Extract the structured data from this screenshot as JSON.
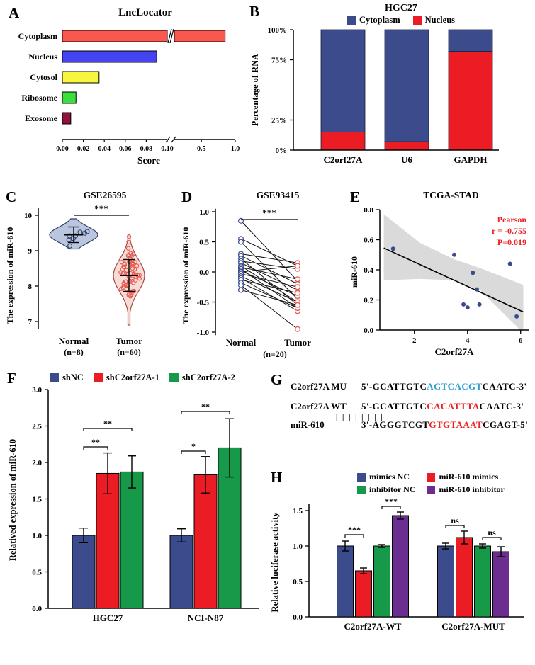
{
  "chart_data": [
    {
      "panel": "A",
      "type": "bar",
      "orientation": "horizontal",
      "title": "LncLocator",
      "xlabel": "Score",
      "categories": [
        "Cytoplasm",
        "Nucleus",
        "Cytosol",
        "Ribosome",
        "Exosome"
      ],
      "values": [
        0.85,
        0.09,
        0.035,
        0.013,
        0.008
      ],
      "bar_colors": [
        "#fa574f",
        "#4444f0",
        "#f6f63e",
        "#3bdf3b",
        "#8f123e"
      ],
      "axis_break": {
        "left_max": 0.1,
        "right_max": 1.0
      },
      "ticks_left": [
        {
          "v": 0,
          "label": "0.00"
        },
        {
          "v": 0.02,
          "label": "0.02"
        },
        {
          "v": 0.04,
          "label": "0.04"
        },
        {
          "v": 0.06,
          "label": "0.06"
        },
        {
          "v": 0.08,
          "label": "0.08"
        },
        {
          "v": 0.1,
          "label": "0.10"
        }
      ],
      "ticks_right": [
        {
          "v": 0.5,
          "label": "0.5"
        },
        {
          "v": 1.0,
          "label": "1.0"
        }
      ]
    },
    {
      "panel": "B",
      "type": "stacked-bar",
      "title": "HGC27",
      "ylabel": "Percentage of RNA",
      "categories": [
        "C2orf27A",
        "U6",
        "GAPDH"
      ],
      "series": [
        {
          "name": "Nucleus",
          "color": "#ec1c24",
          "values": [
            15,
            7,
            82
          ]
        },
        {
          "name": "Cytoplasm",
          "color": "#3c4b8c",
          "values": [
            85,
            93,
            18
          ]
        }
      ],
      "yticks": [
        {
          "v": 0,
          "label": "0%"
        },
        {
          "v": 25,
          "label": "25%"
        },
        {
          "v": 75,
          "label": "75%"
        },
        {
          "v": 100,
          "label": "100%"
        }
      ],
      "ylim": [
        0,
        100
      ]
    },
    {
      "panel": "C",
      "type": "violin",
      "title": "GSE26595",
      "ylabel": "The expression of miR-610",
      "significance": "***",
      "yticks": [
        7,
        8,
        9,
        10
      ],
      "ylim": [
        6.8,
        10.2
      ],
      "groups": [
        {
          "label": "Normal",
          "sublabel": "(n=8)",
          "n": 8,
          "mean": 9.45,
          "sd": 0.22,
          "min": 9.05,
          "max": 9.9,
          "maxw": 34,
          "fill": "#b9c6de",
          "stroke": "#333f6b",
          "point_color": "#333f6b"
        },
        {
          "label": "Tumor",
          "sublabel": "(n=60)",
          "n": 60,
          "mean": 8.3,
          "sd": 0.45,
          "min": 6.9,
          "max": 9.45,
          "maxw": 22,
          "fill": "#f8dbd5",
          "stroke": "#a14a44",
          "point_color": "#e4564f"
        }
      ]
    },
    {
      "panel": "D",
      "type": "paired-line",
      "title": "GSE93415",
      "ylabel": "The expression of miR-610",
      "significance": "***",
      "conditions": [
        "Normal",
        "Tumor"
      ],
      "sublabel": "(n=20)",
      "point_colors": {
        "normal": "#3a4a8c",
        "tumor": "#e4564f"
      },
      "yticks": [
        {
          "v": -1.0,
          "label": "-1.0"
        },
        {
          "v": -0.5,
          "label": "-0.5"
        },
        {
          "v": 0.0,
          "label": "0.0"
        },
        {
          "v": 0.5,
          "label": "0.5"
        },
        {
          "v": 1.0,
          "label": "1.0"
        }
      ],
      "ylim": [
        -1.05,
        1.05
      ],
      "pairs": [
        [
          0.85,
          -0.15
        ],
        [
          0.55,
          0.1
        ],
        [
          0.5,
          -0.45
        ],
        [
          0.3,
          0.15
        ],
        [
          0.27,
          -0.2
        ],
        [
          0.22,
          -0.55
        ],
        [
          0.18,
          0.05
        ],
        [
          0.15,
          -0.3
        ],
        [
          0.1,
          -0.5
        ],
        [
          0.08,
          -0.12
        ],
        [
          0.05,
          -0.6
        ],
        [
          0.02,
          -0.4
        ],
        [
          0.0,
          0.1
        ],
        [
          -0.03,
          -0.25
        ],
        [
          -0.07,
          -0.5
        ],
        [
          -0.1,
          -0.65
        ],
        [
          -0.13,
          -0.35
        ],
        [
          -0.18,
          -0.6
        ],
        [
          -0.22,
          -0.95
        ],
        [
          -0.3,
          -0.55
        ]
      ]
    },
    {
      "panel": "E",
      "type": "scatter",
      "title": "TCGA-STAD",
      "xlabel": "C2orf27A",
      "ylabel": "miR-610",
      "annotation": {
        "lines": [
          "Pearson",
          "r = -0.755",
          "P=0.019"
        ],
        "color": "#ed2024"
      },
      "point_color": "#3a4a8c",
      "points": [
        [
          1.2,
          0.54
        ],
        [
          3.5,
          0.5
        ],
        [
          3.85,
          0.17
        ],
        [
          4.0,
          0.15
        ],
        [
          4.2,
          0.38
        ],
        [
          4.35,
          0.27
        ],
        [
          4.45,
          0.17
        ],
        [
          5.6,
          0.44
        ],
        [
          5.85,
          0.09
        ]
      ],
      "regression": {
        "x1": 0.85,
        "y1": 0.545,
        "x2": 6.1,
        "y2": 0.12
      },
      "ci_upper": [
        [
          0.85,
          0.77
        ],
        [
          2.2,
          0.58
        ],
        [
          3.5,
          0.47
        ],
        [
          4.5,
          0.41
        ],
        [
          6.1,
          0.3
        ]
      ],
      "ci_lower": [
        [
          0.85,
          0.33
        ],
        [
          2.2,
          0.34
        ],
        [
          3.5,
          0.33
        ],
        [
          4.5,
          0.26
        ],
        [
          6.1,
          -0.02
        ]
      ],
      "xticks": [
        2,
        4,
        6
      ],
      "yticks": [
        {
          "v": 0.0,
          "label": "0.0"
        },
        {
          "v": 0.2,
          "label": "0.2"
        },
        {
          "v": 0.4,
          "label": "0.4"
        },
        {
          "v": 0.6,
          "label": "0.6"
        },
        {
          "v": 0.8,
          "label": "0.8"
        }
      ],
      "xlim": [
        0.7,
        6.3
      ],
      "ylim": [
        0,
        0.8
      ]
    },
    {
      "panel": "F",
      "type": "grouped-bar",
      "ylabel": "Relatived expression of miR-610",
      "groups": [
        "HGC27",
        "NCI-N87"
      ],
      "legend": [
        {
          "name": "shNC",
          "color": "#3c4b8c"
        },
        {
          "name": "shC2orf27A-1",
          "color": "#ec1c24"
        },
        {
          "name": "shC2orf27A-2",
          "color": "#169a4a"
        }
      ],
      "series_values": [
        [
          1.0,
          1.85,
          1.87
        ],
        [
          1.0,
          1.83,
          2.2
        ]
      ],
      "errors": [
        [
          0.1,
          0.28,
          0.22
        ],
        [
          0.09,
          0.25,
          0.4
        ]
      ],
      "yticks": [
        {
          "v": 0.0,
          "label": "0.0"
        },
        {
          "v": 0.5,
          "label": "0.5"
        },
        {
          "v": 1.0,
          "label": "1.0"
        },
        {
          "v": 1.5,
          "label": "1.5"
        },
        {
          "v": 2.0,
          "label": "2.0"
        },
        {
          "v": 2.5,
          "label": "2.5"
        },
        {
          "v": 3.0,
          "label": "3.0"
        }
      ],
      "ylim": [
        0,
        3.0
      ],
      "significance": [
        {
          "group": 0,
          "from": 0,
          "to": 1,
          "label": "**"
        },
        {
          "group": 0,
          "from": 0,
          "to": 2,
          "label": "**"
        },
        {
          "group": 1,
          "from": 0,
          "to": 1,
          "label": "*"
        },
        {
          "group": 1,
          "from": 0,
          "to": 2,
          "label": "**"
        }
      ]
    },
    {
      "panel": "G",
      "type": "sequence-alignment",
      "rows": [
        {
          "label": "C2orf27A MU",
          "prefix": "5'-GCATTGTC",
          "highlight": "AGTCACGT",
          "highlight_color": "#2e9fd4",
          "suffix": "CAATC-3'"
        },
        {
          "label": "C2orf27A WT",
          "prefix": "5'-GCATTGTC",
          "highlight": "CACATTTA",
          "highlight_color": "#ed2024",
          "suffix": "CAATC-3'"
        },
        {
          "label": "miR-610",
          "prefix": "3'-AGGGTCGT",
          "highlight": "GTGTAAAT",
          "highlight_color": "#ed2024",
          "suffix": "CGAGT-5'"
        }
      ],
      "pair_bars": "||||||||"
    },
    {
      "panel": "H",
      "type": "grouped-bar",
      "ylabel": "Relative luciferase activity",
      "groups": [
        "C2orf27A-WT",
        "C2orf27A-MUT"
      ],
      "legend": [
        {
          "name": "mimics NC",
          "color": "#3c4b8c"
        },
        {
          "name": "miR-610 mimics",
          "color": "#ec1c24"
        },
        {
          "name": "inhibitor NC",
          "color": "#169a4a"
        },
        {
          "name": "miR-610 inhibitor",
          "color": "#6b2d90"
        }
      ],
      "series_values": [
        [
          1.0,
          0.65,
          1.0,
          1.43
        ],
        [
          1.0,
          1.12,
          1.0,
          0.92
        ]
      ],
      "errors": [
        [
          0.07,
          0.04,
          0.02,
          0.05
        ],
        [
          0.04,
          0.09,
          0.03,
          0.07
        ]
      ],
      "yticks": [
        {
          "v": 0.0,
          "label": "0.0"
        },
        {
          "v": 0.5,
          "label": "0.5"
        },
        {
          "v": 1.0,
          "label": "1.0"
        },
        {
          "v": 1.5,
          "label": "1.5"
        }
      ],
      "ylim": [
        0,
        1.6
      ],
      "significance": [
        {
          "group": 0,
          "from": 0,
          "to": 1,
          "label": "***"
        },
        {
          "group": 0,
          "from": 2,
          "to": 3,
          "label": "***"
        },
        {
          "group": 1,
          "from": 0,
          "to": 1,
          "label": "ns"
        },
        {
          "group": 1,
          "from": 2,
          "to": 3,
          "label": "ns"
        }
      ]
    }
  ]
}
